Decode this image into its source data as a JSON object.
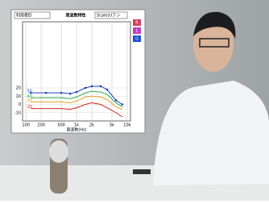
{
  "header": {
    "user_select": "利用者EI",
    "scale_select": "Scale(Uフン"
  },
  "buttons": [
    "R",
    "L",
    "G"
  ],
  "chart_data": {
    "type": "line",
    "title": "周波数特性",
    "x_label": "周波数(Hz)",
    "log_x": true,
    "grid": true,
    "x": [
      125,
      250,
      500,
      750,
      1000,
      1500,
      2000,
      3000,
      4000,
      6000,
      8000
    ],
    "xlim": [
      86,
      11600
    ],
    "xticks": [
      100,
      200,
      500,
      {
        "value": 1000,
        "label": "1k"
      },
      {
        "value": 2000,
        "label": "2k"
      },
      {
        "value": 5000,
        "label": "5k"
      },
      {
        "value": 10000,
        "label": "10k"
      }
    ],
    "ylim": [
      -20,
      100
    ],
    "yticks": [
      -10,
      0,
      10,
      20
    ],
    "series": [
      {
        "name": "50",
        "color": "#1f3fbf",
        "values": [
          14,
          14,
          14,
          13,
          15,
          20,
          22,
          22,
          18,
          5,
          0
        ]
      },
      {
        "name": "40",
        "color": "#2aa84a",
        "values": [
          8,
          8,
          8,
          7,
          9,
          14,
          16,
          15,
          12,
          2,
          -3
        ]
      },
      {
        "name": "30",
        "color": "#e0a020",
        "values": [
          3,
          3,
          3,
          2,
          4,
          9,
          10,
          9,
          6,
          -3,
          -6
        ]
      },
      {
        "name": "20",
        "color": "#d02020",
        "values": [
          -5,
          -5,
          -5,
          -6,
          -4,
          0,
          2,
          0,
          -4,
          -10,
          -15
        ]
      }
    ]
  }
}
